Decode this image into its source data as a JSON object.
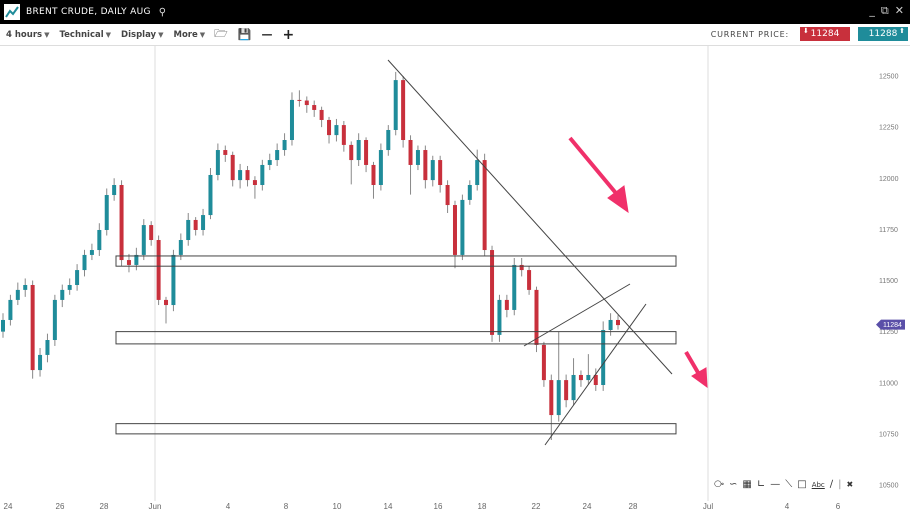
{
  "window": {
    "title": "BRENT CRUDE, DAILY AUG",
    "icons": [
      "chart-logo-icon",
      "search-icon",
      "minimize-icon",
      "popout-icon",
      "close-icon"
    ]
  },
  "toolbar": {
    "interval": "4 hours",
    "technical": "Technical",
    "display": "Display",
    "more": "More",
    "icons": [
      "folder-open-icon",
      "save-icon",
      "zoom-out-icon",
      "zoom-in-icon"
    ]
  },
  "price": {
    "label": "CURRENT PRICE:",
    "sell": "11284",
    "buy": "11288",
    "marker": "11284",
    "sell_color": "#c8303c",
    "buy_color": "#1f8c9a",
    "marker_color": "#5a4fa8"
  },
  "chart_data": {
    "type": "candlestick",
    "up_color": "#1f8c9a",
    "down_color": "#c8303c",
    "y_ticks": [
      "12500",
      "12250",
      "12000",
      "11750",
      "11500",
      "11250",
      "11000",
      "10750",
      "10500"
    ],
    "ylim": [
      10500,
      12500
    ],
    "x_ticks": [
      "24",
      "26",
      "28",
      "Jun",
      "4",
      "8",
      "10",
      "14",
      "16",
      "18",
      "22",
      "24",
      "28",
      "Jul",
      "4",
      "6"
    ],
    "horizontal_zones": [
      [
        11570,
        11620
      ],
      [
        11190,
        11250
      ],
      [
        10750,
        10800
      ]
    ],
    "candles": [
      [
        11250,
        11340,
        11220,
        11307
      ],
      [
        11307,
        11430,
        11280,
        11405
      ],
      [
        11405,
        11490,
        11380,
        11454
      ],
      [
        11454,
        11510,
        11420,
        11478
      ],
      [
        11478,
        11500,
        11020,
        11062
      ],
      [
        11062,
        11170,
        11030,
        11136
      ],
      [
        11136,
        11240,
        11100,
        11209
      ],
      [
        11209,
        11430,
        11180,
        11405
      ],
      [
        11405,
        11480,
        11370,
        11454
      ],
      [
        11454,
        11510,
        11430,
        11478
      ],
      [
        11478,
        11580,
        11450,
        11551
      ],
      [
        11551,
        11650,
        11520,
        11625
      ],
      [
        11625,
        11680,
        11600,
        11649
      ],
      [
        11649,
        11780,
        11620,
        11747
      ],
      [
        11747,
        11950,
        11720,
        11918
      ],
      [
        11918,
        12000,
        11890,
        11967
      ],
      [
        11967,
        11990,
        11570,
        11600
      ],
      [
        11600,
        11630,
        11540,
        11576
      ],
      [
        11576,
        11660,
        11550,
        11625
      ],
      [
        11625,
        11800,
        11600,
        11771
      ],
      [
        11771,
        11790,
        11670,
        11698
      ],
      [
        11698,
        11720,
        11380,
        11405
      ],
      [
        11405,
        11420,
        11290,
        11380
      ],
      [
        11380,
        11650,
        11350,
        11625
      ],
      [
        11625,
        11730,
        11600,
        11698
      ],
      [
        11698,
        11830,
        11670,
        11796
      ],
      [
        11796,
        11810,
        11720,
        11747
      ],
      [
        11747,
        11850,
        11720,
        11820
      ],
      [
        11820,
        12050,
        11800,
        12016
      ],
      [
        12016,
        12170,
        11990,
        12138
      ],
      [
        12138,
        12160,
        12080,
        12114
      ],
      [
        12114,
        12130,
        11960,
        11991
      ],
      [
        11991,
        12070,
        11950,
        12040
      ],
      [
        12040,
        12060,
        11960,
        11991
      ],
      [
        11991,
        12010,
        11900,
        11967
      ],
      [
        11967,
        12090,
        11940,
        12065
      ],
      [
        12065,
        12120,
        12040,
        12089
      ],
      [
        12089,
        12170,
        12060,
        12138
      ],
      [
        12138,
        12220,
        12110,
        12187
      ],
      [
        12187,
        12420,
        12160,
        12383
      ],
      [
        12383,
        12430,
        12350,
        12380
      ],
      [
        12380,
        12400,
        12320,
        12358
      ],
      [
        12358,
        12380,
        12300,
        12334
      ],
      [
        12334,
        12350,
        12250,
        12285
      ],
      [
        12285,
        12300,
        12170,
        12211
      ],
      [
        12211,
        12290,
        12180,
        12260
      ],
      [
        12260,
        12280,
        12130,
        12163
      ],
      [
        12163,
        12180,
        11970,
        12089
      ],
      [
        12089,
        12220,
        12060,
        12187
      ],
      [
        12187,
        12200,
        12030,
        12065
      ],
      [
        12065,
        12080,
        11900,
        11967
      ],
      [
        11967,
        12170,
        11940,
        12138
      ],
      [
        12138,
        12260,
        12110,
        12236
      ],
      [
        12236,
        12520,
        12210,
        12480
      ],
      [
        12480,
        12500,
        12150,
        12187
      ],
      [
        12187,
        12210,
        11920,
        12065
      ],
      [
        12065,
        12160,
        12040,
        12138
      ],
      [
        12138,
        12160,
        11950,
        11991
      ],
      [
        11991,
        12110,
        11960,
        12089
      ],
      [
        12089,
        12110,
        11930,
        11967
      ],
      [
        11967,
        11990,
        11830,
        11869
      ],
      [
        11869,
        11890,
        11560,
        11625
      ],
      [
        11625,
        11920,
        11600,
        11894
      ],
      [
        11894,
        11990,
        11870,
        11967
      ],
      [
        11967,
        12140,
        11940,
        12089
      ],
      [
        12089,
        12120,
        11620,
        11649
      ],
      [
        11649,
        11670,
        11200,
        11234
      ],
      [
        11234,
        11430,
        11200,
        11405
      ],
      [
        11405,
        11430,
        11320,
        11356
      ],
      [
        11356,
        11610,
        11330,
        11576
      ],
      [
        11576,
        11610,
        11520,
        11551
      ],
      [
        11551,
        11570,
        11430,
        11454
      ],
      [
        11454,
        11470,
        11150,
        11185
      ],
      [
        11185,
        11200,
        10980,
        11013
      ],
      [
        11013,
        11040,
        10720,
        10842
      ],
      [
        10842,
        11250,
        10810,
        11013
      ],
      [
        11013,
        11040,
        10880,
        10915
      ],
      [
        10915,
        11120,
        10890,
        11038
      ],
      [
        11038,
        11060,
        10980,
        11013
      ],
      [
        11013,
        11140,
        10990,
        11038
      ],
      [
        11038,
        11070,
        10960,
        10989
      ],
      [
        10989,
        11300,
        10960,
        11258
      ],
      [
        11258,
        11340,
        11230,
        11307
      ],
      [
        11307,
        11330,
        11260,
        11282
      ]
    ]
  },
  "drawing_tools": {
    "icons": [
      "pointer-icon",
      "curve-icon",
      "fibonacci-icon",
      "fan-icon",
      "horizontal-line-icon",
      "trend-line-icon",
      "rectangle-icon",
      "text-tool-icon",
      "line-icon",
      "separator-icon",
      "delete-icon"
    ],
    "text_label": "Abc"
  },
  "annotation_color": "#f0306a"
}
